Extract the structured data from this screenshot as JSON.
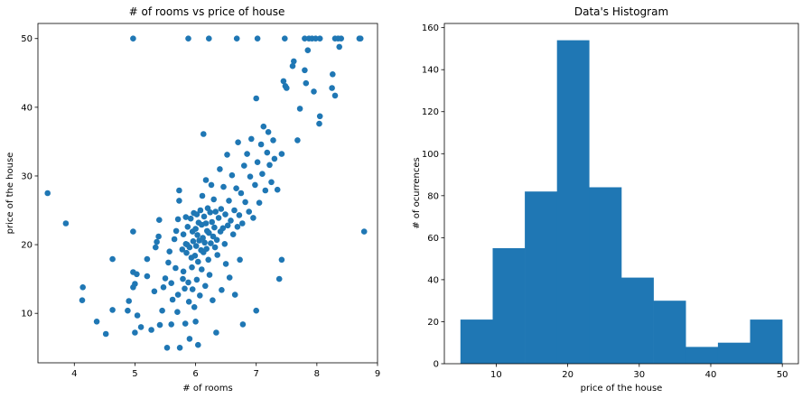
{
  "chart_data": [
    {
      "type": "scatter",
      "title": "# of rooms vs price of house",
      "xlabel": "# of rooms",
      "ylabel": "price of the house",
      "xlim": [
        3.4,
        9.0
      ],
      "ylim": [
        2.8,
        52.2
      ],
      "xticks": [
        "4",
        "5",
        "6",
        "7",
        "8",
        "9"
      ],
      "yticks": [
        "10",
        "20",
        "30",
        "40",
        "50"
      ],
      "grid": false,
      "color": "#1f77b4",
      "points": [
        [
          3.56,
          27.5
        ],
        [
          3.86,
          23.1
        ],
        [
          4.14,
          13.8
        ],
        [
          4.13,
          11.9
        ],
        [
          4.37,
          8.8
        ],
        [
          4.52,
          7.0
        ],
        [
          4.63,
          10.5
        ],
        [
          4.63,
          17.9
        ],
        [
          4.88,
          10.4
        ],
        [
          4.9,
          11.8
        ],
        [
          4.97,
          13.8
        ],
        [
          5.0,
          14.3
        ],
        [
          5.03,
          15.7
        ],
        [
          4.97,
          16.0
        ],
        [
          4.97,
          21.9
        ],
        [
          5.0,
          7.2
        ],
        [
          5.04,
          9.7
        ],
        [
          5.1,
          8.0
        ],
        [
          5.2,
          15.4
        ],
        [
          5.2,
          17.9
        ],
        [
          5.27,
          7.6
        ],
        [
          5.32,
          13.2
        ],
        [
          5.34,
          19.6
        ],
        [
          5.36,
          20.4
        ],
        [
          5.39,
          21.2
        ],
        [
          5.4,
          23.6
        ],
        [
          5.41,
          8.3
        ],
        [
          5.45,
          10.4
        ],
        [
          5.47,
          13.8
        ],
        [
          5.5,
          15.1
        ],
        [
          5.53,
          5.0
        ],
        [
          5.55,
          17.4
        ],
        [
          5.57,
          19.0
        ],
        [
          5.6,
          14.4
        ],
        [
          5.6,
          8.4
        ],
        [
          5.62,
          12.0
        ],
        [
          5.65,
          20.8
        ],
        [
          5.67,
          16.6
        ],
        [
          5.68,
          22.0
        ],
        [
          5.7,
          10.2
        ],
        [
          5.71,
          12.7
        ],
        [
          5.71,
          23.7
        ],
        [
          5.73,
          26.4
        ],
        [
          5.73,
          27.9
        ],
        [
          5.74,
          5.0
        ],
        [
          5.78,
          19.3
        ],
        [
          5.79,
          15.0
        ],
        [
          5.8,
          21.5
        ],
        [
          5.8,
          16.1
        ],
        [
          5.82,
          13.6
        ],
        [
          5.83,
          8.5
        ],
        [
          5.84,
          20.1
        ],
        [
          5.84,
          24.0
        ],
        [
          5.85,
          18.8
        ],
        [
          5.86,
          20.0
        ],
        [
          5.87,
          22.6
        ],
        [
          5.88,
          14.5
        ],
        [
          5.89,
          11.7
        ],
        [
          5.9,
          19.6
        ],
        [
          5.9,
          6.3
        ],
        [
          5.92,
          23.8
        ],
        [
          5.93,
          18.1
        ],
        [
          5.94,
          16.7
        ],
        [
          5.95,
          21.9
        ],
        [
          5.95,
          13.5
        ],
        [
          5.96,
          20.5
        ],
        [
          5.97,
          24.6
        ],
        [
          5.98,
          10.9
        ],
        [
          5.99,
          18.4
        ],
        [
          6.0,
          22.3
        ],
        [
          6.0,
          8.8
        ],
        [
          6.01,
          19.8
        ],
        [
          6.02,
          24.4
        ],
        [
          6.02,
          14.9
        ],
        [
          6.03,
          21.4
        ],
        [
          6.04,
          17.5
        ],
        [
          6.04,
          5.4
        ],
        [
          6.05,
          23.2
        ],
        [
          6.06,
          20.6
        ],
        [
          6.07,
          12.6
        ],
        [
          6.08,
          25.0
        ],
        [
          6.09,
          19.2
        ],
        [
          6.1,
          22.9
        ],
        [
          6.1,
          16.4
        ],
        [
          6.11,
          27.1
        ],
        [
          6.12,
          21.0
        ],
        [
          6.13,
          18.9
        ],
        [
          6.13,
          36.1
        ],
        [
          6.14,
          24.1
        ],
        [
          6.15,
          20.3
        ],
        [
          6.16,
          14.0
        ],
        [
          6.17,
          23.1
        ],
        [
          6.17,
          29.4
        ],
        [
          6.18,
          19.4
        ],
        [
          6.19,
          22.0
        ],
        [
          6.2,
          25.3
        ],
        [
          6.21,
          17.8
        ],
        [
          6.22,
          21.7
        ],
        [
          6.23,
          15.6
        ],
        [
          6.24,
          24.7
        ],
        [
          6.25,
          20.2
        ],
        [
          6.26,
          28.7
        ],
        [
          6.27,
          23.3
        ],
        [
          6.28,
          11.9
        ],
        [
          6.29,
          21.2
        ],
        [
          6.3,
          26.6
        ],
        [
          6.31,
          22.5
        ],
        [
          6.32,
          19.6
        ],
        [
          6.33,
          24.8
        ],
        [
          6.34,
          7.2
        ],
        [
          6.35,
          20.7
        ],
        [
          6.36,
          18.5
        ],
        [
          6.38,
          23.9
        ],
        [
          6.4,
          31.0
        ],
        [
          6.41,
          21.9
        ],
        [
          6.42,
          25.2
        ],
        [
          6.43,
          13.4
        ],
        [
          6.45,
          22.4
        ],
        [
          6.46,
          28.4
        ],
        [
          6.48,
          20.1
        ],
        [
          6.49,
          24.4
        ],
        [
          6.5,
          17.2
        ],
        [
          6.52,
          33.1
        ],
        [
          6.53,
          22.8
        ],
        [
          6.55,
          26.4
        ],
        [
          6.56,
          15.2
        ],
        [
          6.58,
          23.5
        ],
        [
          6.6,
          30.1
        ],
        [
          6.62,
          21.5
        ],
        [
          6.64,
          25.0
        ],
        [
          6.65,
          12.7
        ],
        [
          6.67,
          28.2
        ],
        [
          6.69,
          22.6
        ],
        [
          6.7,
          34.9
        ],
        [
          6.72,
          24.3
        ],
        [
          6.73,
          17.8
        ],
        [
          6.75,
          27.5
        ],
        [
          6.77,
          23.1
        ],
        [
          6.78,
          8.4
        ],
        [
          6.8,
          31.5
        ],
        [
          6.82,
          26.2
        ],
        [
          6.85,
          33.2
        ],
        [
          6.88,
          24.8
        ],
        [
          6.9,
          29.9
        ],
        [
          6.92,
          35.4
        ],
        [
          6.95,
          23.9
        ],
        [
          6.98,
          28.7
        ],
        [
          7.0,
          41.3
        ],
        [
          7.0,
          10.4
        ],
        [
          7.02,
          32.0
        ],
        [
          7.05,
          26.1
        ],
        [
          7.08,
          34.6
        ],
        [
          7.1,
          30.3
        ],
        [
          7.12,
          37.2
        ],
        [
          7.15,
          27.9
        ],
        [
          7.18,
          33.4
        ],
        [
          7.2,
          36.4
        ],
        [
          7.22,
          31.6
        ],
        [
          7.25,
          29.1
        ],
        [
          7.28,
          35.2
        ],
        [
          7.3,
          32.5
        ],
        [
          7.35,
          28.0
        ],
        [
          7.38,
          15.0
        ],
        [
          7.42,
          17.8
        ],
        [
          7.42,
          33.2
        ],
        [
          7.45,
          43.8
        ],
        [
          7.48,
          43.1
        ],
        [
          7.5,
          42.8
        ],
        [
          7.6,
          46.0
        ],
        [
          7.62,
          46.7
        ],
        [
          7.68,
          35.2
        ],
        [
          7.72,
          39.8
        ],
        [
          7.8,
          45.4
        ],
        [
          7.82,
          43.5
        ],
        [
          7.85,
          48.3
        ],
        [
          7.95,
          42.3
        ],
        [
          8.04,
          37.6
        ],
        [
          8.05,
          38.7
        ],
        [
          8.25,
          42.8
        ],
        [
          8.26,
          44.8
        ],
        [
          8.3,
          41.7
        ],
        [
          8.37,
          48.8
        ],
        [
          8.4,
          50.0
        ],
        [
          8.78,
          21.9
        ],
        [
          8.7,
          50.0
        ],
        [
          8.72,
          50.0
        ],
        [
          4.97,
          50.0
        ],
        [
          5.88,
          50.0
        ],
        [
          6.22,
          50.0
        ],
        [
          6.68,
          50.0
        ],
        [
          7.02,
          50.0
        ],
        [
          7.47,
          50.0
        ],
        [
          7.8,
          50.0
        ],
        [
          7.87,
          50.0
        ],
        [
          7.92,
          50.0
        ],
        [
          7.98,
          50.0
        ],
        [
          8.05,
          50.0
        ],
        [
          8.3,
          50.0
        ],
        [
          8.35,
          50.0
        ]
      ]
    },
    {
      "type": "bar",
      "title": "Data's Histogram",
      "xlabel": "price of the house",
      "ylabel": "# of ocurrences",
      "xlim": [
        2.75,
        52.25
      ],
      "ylim": [
        0,
        162
      ],
      "xticks": [
        "10",
        "20",
        "30",
        "40",
        "50"
      ],
      "yticks": [
        "0",
        "20",
        "40",
        "60",
        "80",
        "100",
        "120",
        "140",
        "160"
      ],
      "color": "#1f77b4",
      "bin_edges": [
        5,
        9.5,
        14,
        18.5,
        23,
        27.5,
        32,
        36.5,
        41,
        45.5,
        50
      ],
      "values": [
        21,
        55,
        82,
        154,
        84,
        41,
        30,
        8,
        10,
        21
      ]
    }
  ]
}
